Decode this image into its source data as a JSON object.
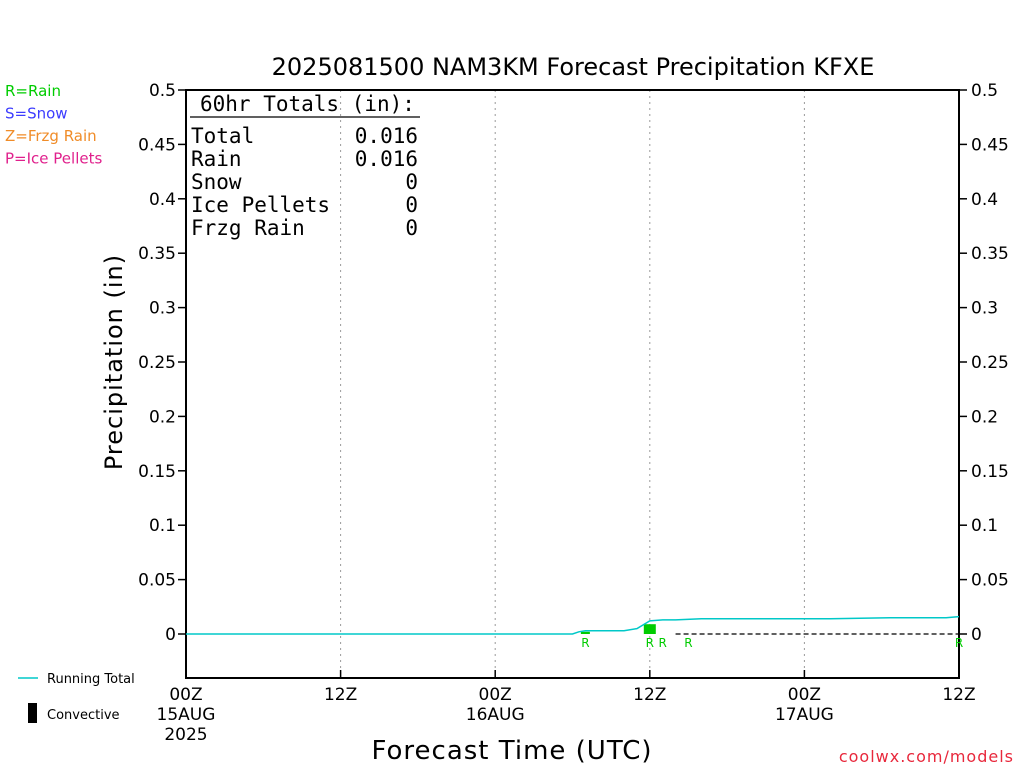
{
  "chart_data": {
    "type": "line",
    "title": "2025081500 NAM3KM Forecast Precipitation KFXE",
    "xlabel": "Forecast Time (UTC)",
    "ylabel": "Precipitation (in)",
    "ylim": [
      0,
      0.5
    ],
    "y_ticks": [
      "0",
      "0.05",
      "0.1",
      "0.15",
      "0.2",
      "0.25",
      "0.3",
      "0.35",
      "0.4",
      "0.45",
      "0.5"
    ],
    "x_range_hours": [
      0,
      60
    ],
    "x_ticks": [
      {
        "hour": 0,
        "label": "00Z",
        "sub1": "15AUG",
        "sub2": "2025"
      },
      {
        "hour": 12,
        "label": "12Z",
        "sub1": "",
        "sub2": ""
      },
      {
        "hour": 24,
        "label": "00Z",
        "sub1": "16AUG",
        "sub2": ""
      },
      {
        "hour": 36,
        "label": "12Z",
        "sub1": "",
        "sub2": ""
      },
      {
        "hour": 48,
        "label": "00Z",
        "sub1": "17AUG",
        "sub2": ""
      },
      {
        "hour": 60,
        "label": "12Z",
        "sub1": "",
        "sub2": ""
      }
    ],
    "grid_hours": [
      12,
      24,
      36,
      48
    ],
    "series": [
      {
        "name": "Running Total",
        "color": "#00c8c8",
        "x": [
          0,
          30,
          30.5,
          31,
          34,
          35,
          36,
          37,
          38,
          40,
          45,
          50,
          55,
          59,
          60
        ],
        "y": [
          0,
          0,
          0.002,
          0.003,
          0.003,
          0.005,
          0.012,
          0.013,
          0.013,
          0.014,
          0.014,
          0.014,
          0.015,
          0.015,
          0.016
        ]
      }
    ],
    "hourly_precip": {
      "color": "#00cc00",
      "x": [
        31,
        36
      ],
      "y": [
        0.002,
        0.009
      ]
    },
    "ptype_markers": [
      {
        "hour": 31,
        "label": "R"
      },
      {
        "hour": 36,
        "label": "R"
      },
      {
        "hour": 37,
        "label": "R"
      },
      {
        "hour": 39,
        "label": "R"
      },
      {
        "hour": 60,
        "label": "R"
      }
    ],
    "totals_box": {
      "heading": "60hr Totals (in):",
      "rows": [
        {
          "label": "Total",
          "value": "0.016"
        },
        {
          "label": "Rain",
          "value": "0.016"
        },
        {
          "label": "Snow",
          "value": "0"
        },
        {
          "label": "Ice Pellets",
          "value": "0"
        },
        {
          "label": "Frzg Rain",
          "value": "0"
        }
      ]
    },
    "ptype_legend": [
      {
        "text": "R=Rain",
        "color": "#00cc00"
      },
      {
        "text": "S=Snow",
        "color": "#3c3cff"
      },
      {
        "text": "Z=Frzg Rain",
        "color": "#f08c28"
      },
      {
        "text": "P=Ice Pellets",
        "color": "#e0208c"
      }
    ],
    "series_legend": [
      {
        "text": "Running Total",
        "kind": "line",
        "color": "#00c8c8"
      },
      {
        "text": "Convective",
        "kind": "bar",
        "color": "#000000"
      }
    ],
    "credit": "coolwx.com/models"
  }
}
